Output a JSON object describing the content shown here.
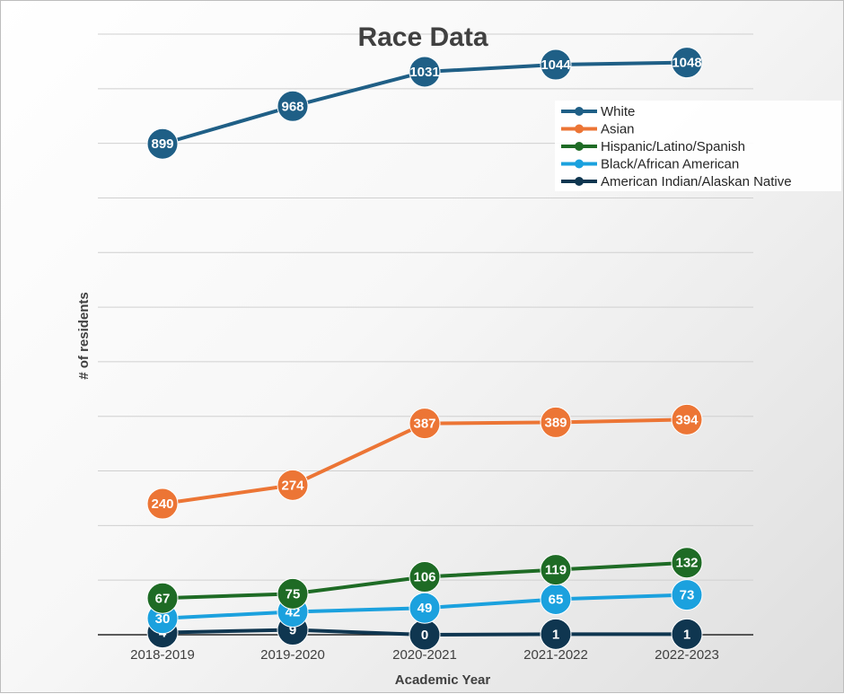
{
  "chart_data": {
    "type": "line",
    "title": "Race Data",
    "xlabel": "Academic Year",
    "ylabel": "# of residents",
    "categories": [
      "2018-2019",
      "2019-2020",
      "2020-2021",
      "2021-2022",
      "2022-2023"
    ],
    "ylim": [
      0,
      1100
    ],
    "y_gridline_step": 100,
    "y_tick_labels_shown": false,
    "grid": true,
    "legend_position": "top-right",
    "series": [
      {
        "name": "White",
        "color": "#1f5f86",
        "values": [
          899,
          968,
          1031,
          1044,
          1048
        ]
      },
      {
        "name": "Asian",
        "color": "#ec7535",
        "values": [
          240,
          274,
          387,
          389,
          394
        ]
      },
      {
        "name": "Hispanic/Latino/Spanish",
        "color": "#1e6b25",
        "values": [
          67,
          75,
          106,
          119,
          132
        ]
      },
      {
        "name": "Black/African American",
        "color": "#1ba1de",
        "values": [
          30,
          42,
          49,
          65,
          73
        ]
      },
      {
        "name": "American Indian/Alaskan Native",
        "color": "#0f3650",
        "values": [
          4,
          9,
          0,
          1,
          1
        ]
      }
    ]
  }
}
